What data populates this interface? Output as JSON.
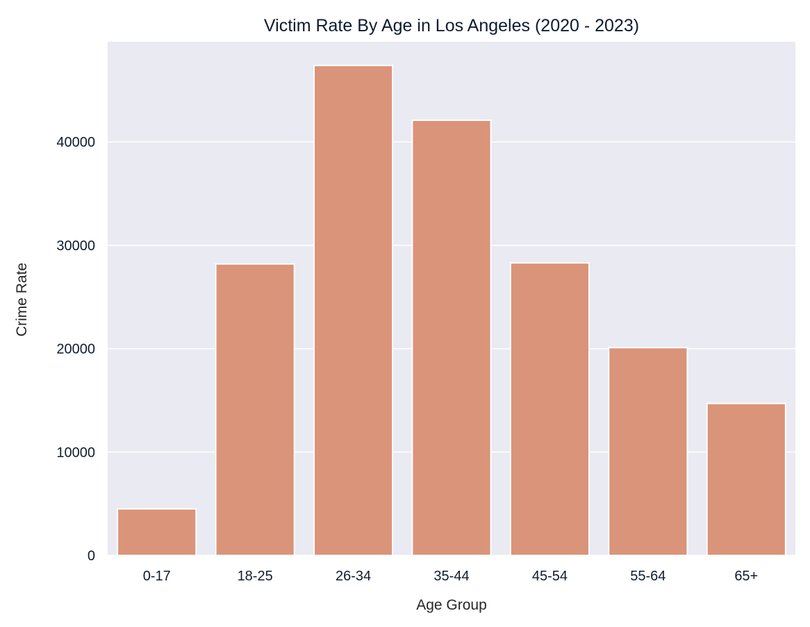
{
  "chart_data": {
    "type": "bar",
    "title": "Victim Rate By Age in Los Angeles (2020 - 2023)",
    "xlabel": "Age Group",
    "ylabel": "Crime Rate",
    "categories": [
      "0-17",
      "18-25",
      "26-34",
      "35-44",
      "45-54",
      "55-64",
      "65+"
    ],
    "values": [
      4500,
      28200,
      47400,
      42100,
      28300,
      20100,
      14700
    ],
    "ylim": [
      0,
      49700
    ],
    "yticks": [
      0,
      10000,
      20000,
      30000,
      40000
    ],
    "grid": true,
    "bar_color": "#da9479",
    "plot_background": "#eaeaf2"
  }
}
